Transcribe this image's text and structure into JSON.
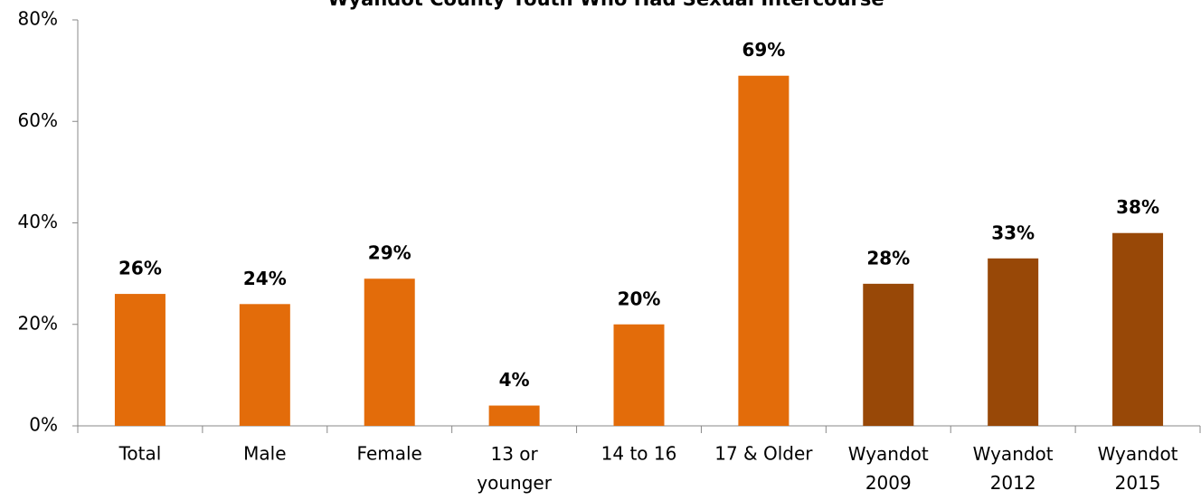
{
  "chart_data": {
    "type": "bar",
    "title": "Wyandot County Youth Who Had Sexual Intercourse",
    "categories": [
      "Total",
      "Male",
      "Female",
      [
        "13 or",
        "younger"
      ],
      "14 to 16",
      "17 & Older",
      [
        "Wyandot",
        "2009"
      ],
      [
        "Wyandot",
        "2012"
      ],
      [
        "Wyandot",
        "2015"
      ]
    ],
    "values": [
      26,
      24,
      29,
      4,
      20,
      69,
      28,
      33,
      38
    ],
    "value_labels": [
      "26%",
      "24%",
      "29%",
      "4%",
      "20%",
      "69%",
      "28%",
      "33%",
      "38%"
    ],
    "colors": [
      "#e36c0a",
      "#e36c0a",
      "#e36c0a",
      "#e36c0a",
      "#e36c0a",
      "#e36c0a",
      "#984807",
      "#984807",
      "#984807"
    ],
    "ylim": [
      0,
      80
    ],
    "yticks": [
      {
        "value": 0,
        "label": "0%"
      },
      {
        "value": 20,
        "label": "20%"
      },
      {
        "value": 40,
        "label": "40%"
      },
      {
        "value": 60,
        "label": "60%"
      },
      {
        "value": 80,
        "label": "80%"
      }
    ],
    "grid": false
  }
}
